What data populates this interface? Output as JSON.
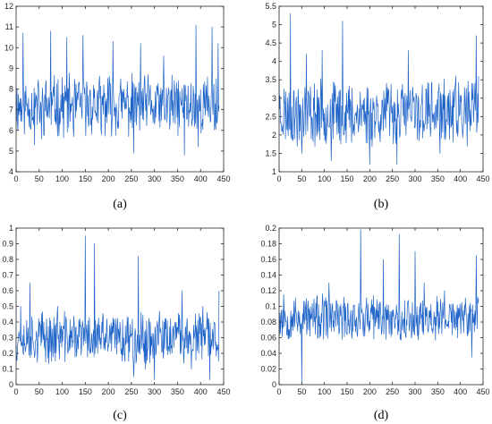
{
  "colors": {
    "series": "#1f64c8",
    "axis": "#262626",
    "background": "#ffffff"
  },
  "chart_data": [
    {
      "type": "line",
      "caption": "(a)",
      "xlim": [
        0,
        450
      ],
      "ylim": [
        4,
        12
      ],
      "xticks": [
        "0",
        "50",
        "100",
        "150",
        "200",
        "250",
        "300",
        "350",
        "400",
        "450"
      ],
      "yticks": [
        "4",
        "5",
        "6",
        "7",
        "8",
        "9",
        "10",
        "11",
        "12"
      ],
      "n": 440,
      "baseline": 7.2,
      "amplitude": 1.25,
      "seed": 11,
      "anchors": [
        [
          15,
          10.7
        ],
        [
          40,
          5.3
        ],
        [
          55,
          5.6
        ],
        [
          75,
          10.8
        ],
        [
          110,
          10.5
        ],
        [
          125,
          5.7
        ],
        [
          145,
          10.6
        ],
        [
          185,
          5.8
        ],
        [
          210,
          10.3
        ],
        [
          255,
          4.9
        ],
        [
          270,
          10.2
        ],
        [
          300,
          6.3
        ],
        [
          320,
          9.6
        ],
        [
          365,
          4.8
        ],
        [
          390,
          11.1
        ],
        [
          395,
          5.2
        ],
        [
          425,
          11.0
        ],
        [
          438,
          10.2
        ],
        [
          440,
          7.2
        ]
      ],
      "xlabel": "",
      "ylabel": "",
      "title": "",
      "grid": false
    },
    {
      "type": "line",
      "caption": "(b)",
      "xlim": [
        0,
        450
      ],
      "ylim": [
        1,
        5.5
      ],
      "xticks": [
        "0",
        "50",
        "100",
        "150",
        "200",
        "250",
        "300",
        "350",
        "400",
        "450"
      ],
      "yticks": [
        "1",
        "1.5",
        "2",
        "2.5",
        "3",
        "3.5",
        "4",
        "4.5",
        "5",
        "5.5"
      ],
      "n": 440,
      "baseline": 2.6,
      "amplitude": 0.75,
      "seed": 23,
      "anchors": [
        [
          0,
          3.5
        ],
        [
          25,
          5.3
        ],
        [
          40,
          1.7
        ],
        [
          50,
          1.5
        ],
        [
          60,
          4.2
        ],
        [
          95,
          4.3
        ],
        [
          115,
          1.3
        ],
        [
          140,
          5.1
        ],
        [
          160,
          1.8
        ],
        [
          200,
          1.2
        ],
        [
          260,
          1.2
        ],
        [
          285,
          4.3
        ],
        [
          300,
          2.2
        ],
        [
          330,
          3.4
        ],
        [
          355,
          1.5
        ],
        [
          390,
          3.6
        ],
        [
          415,
          1.7
        ],
        [
          435,
          4.7
        ],
        [
          440,
          3.6
        ]
      ],
      "xlabel": "",
      "ylabel": "",
      "title": "",
      "grid": false
    },
    {
      "type": "line",
      "caption": "(c)",
      "xlim": [
        0,
        450
      ],
      "ylim": [
        0,
        1
      ],
      "xticks": [
        "0",
        "50",
        "100",
        "150",
        "200",
        "250",
        "300",
        "350",
        "400",
        "450"
      ],
      "yticks": [
        "0",
        "0.1",
        "0.2",
        "0.3",
        "0.4",
        "0.5",
        "0.6",
        "0.7",
        "0.8",
        "0.9",
        "1"
      ],
      "n": 440,
      "baseline": 0.3,
      "amplitude": 0.14,
      "seed": 37,
      "anchors": [
        [
          0,
          0.25
        ],
        [
          10,
          0.5
        ],
        [
          30,
          0.65
        ],
        [
          60,
          0.4
        ],
        [
          90,
          0.5
        ],
        [
          120,
          0.3
        ],
        [
          150,
          0.95
        ],
        [
          170,
          0.9
        ],
        [
          200,
          0.25
        ],
        [
          230,
          0.15
        ],
        [
          255,
          0.05
        ],
        [
          265,
          0.82
        ],
        [
          280,
          0.1
        ],
        [
          300,
          0.03
        ],
        [
          320,
          0.2
        ],
        [
          345,
          0.4
        ],
        [
          360,
          0.6
        ],
        [
          380,
          0.1
        ],
        [
          405,
          0.5
        ],
        [
          420,
          0.03
        ],
        [
          440,
          0.6
        ]
      ],
      "xlabel": "",
      "ylabel": "",
      "title": "",
      "grid": false
    },
    {
      "type": "line",
      "caption": "(d)",
      "xlim": [
        0,
        450
      ],
      "ylim": [
        0,
        0.2
      ],
      "xticks": [
        "0",
        "50",
        "100",
        "150",
        "200",
        "250",
        "300",
        "350",
        "400",
        "450"
      ],
      "yticks": [
        "0",
        "0.02",
        "0.04",
        "0.06",
        "0.08",
        "0.1",
        "0.12",
        "0.14",
        "0.16",
        "0.18",
        "0.2"
      ],
      "n": 440,
      "baseline": 0.085,
      "amplitude": 0.025,
      "seed": 53,
      "anchors": [
        [
          0,
          0.06
        ],
        [
          10,
          0.115
        ],
        [
          30,
          0.09
        ],
        [
          50,
          0.002
        ],
        [
          60,
          0.11
        ],
        [
          90,
          0.06
        ],
        [
          110,
          0.13
        ],
        [
          140,
          0.09
        ],
        [
          180,
          0.198
        ],
        [
          200,
          0.07
        ],
        [
          230,
          0.16
        ],
        [
          265,
          0.192
        ],
        [
          280,
          0.06
        ],
        [
          300,
          0.17
        ],
        [
          320,
          0.13
        ],
        [
          340,
          0.07
        ],
        [
          365,
          0.12
        ],
        [
          400,
          0.08
        ],
        [
          425,
          0.035
        ],
        [
          435,
          0.165
        ],
        [
          440,
          0.11
        ]
      ],
      "xlabel": "",
      "ylabel": "",
      "title": "",
      "grid": false
    }
  ]
}
